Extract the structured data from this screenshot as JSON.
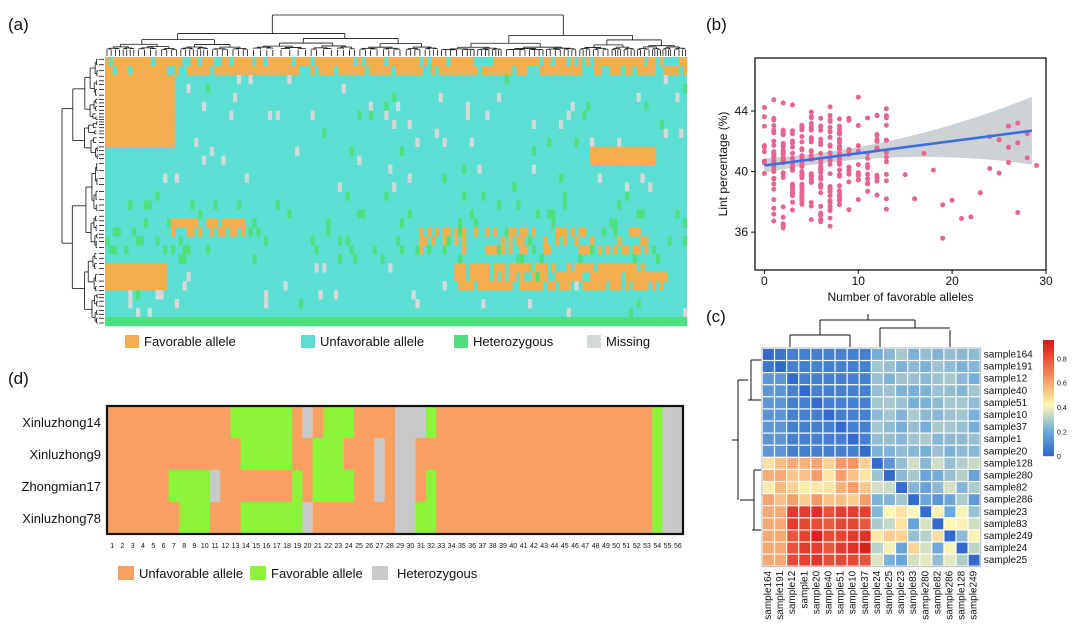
{
  "chart_data": [
    {
      "panel": "(a)",
      "type": "heatmap",
      "title": "",
      "legend": [
        {
          "label": "Favorable allele",
          "color": "#F5AE4E"
        },
        {
          "label": "Unfavorable allele",
          "color": "#5ADFD2"
        },
        {
          "label": "Heterozygous",
          "color": "#4EE07E"
        },
        {
          "label": "Missing",
          "color": "#D4D8D8"
        }
      ],
      "rows": 30,
      "columns": 56,
      "note": "Clustered genotype heatmap of favorable alleles across accessions with row and column dendrograms"
    },
    {
      "panel": "(b)",
      "type": "scatter",
      "xlabel": "Number of favorable alleles",
      "ylabel": "Lint percentage (%)",
      "xlim": [
        -1,
        30
      ],
      "ylim": [
        33.5,
        47.5
      ],
      "xticks": [
        "0",
        "10",
        "20",
        "30"
      ],
      "yticks": [
        "36",
        "40",
        "44"
      ],
      "point_color": "#E8638F",
      "regression": {
        "color": "#3B6FE0",
        "x": [
          0,
          28.5
        ],
        "y": [
          40.4,
          42.7
        ],
        "ci_color": "#C8CDD2"
      },
      "points_summary": "Dense cluster at 0–13 favorable alleles (lint 34–47%), sparse points 14–29"
    },
    {
      "panel": "(c)",
      "type": "heatmap",
      "samples": [
        "sample164",
        "sample191",
        "sample12",
        "sample40",
        "sample51",
        "sample10",
        "sample37",
        "sample1",
        "sample20",
        "sample128",
        "sample280",
        "sample82",
        "sample286",
        "sample23",
        "sample83",
        "sample249",
        "sample24",
        "sample25"
      ],
      "col_labels": [
        "sample164",
        "sample191",
        "sample12",
        "sample1",
        "sample20",
        "sample40",
        "sample51",
        "sample10",
        "sample37",
        "sample24",
        "sample25",
        "sample23",
        "sample83",
        "sample280",
        "sample82",
        "sample286",
        "sample128",
        "sample249"
      ],
      "colorbar": {
        "ticks": [
          "0",
          "0.2",
          "0.4",
          "0.6",
          "0.8"
        ],
        "min": 0,
        "max": 0.95,
        "low_color": "#2E63C9",
        "mid_color": "#FFF7B6",
        "high_color": "#D7191C"
      }
    },
    {
      "panel": "(d)",
      "type": "heatmap",
      "varieties": [
        "Xinluzhong14",
        "Xinluzhong9",
        "Zhongmian17",
        "Xinluzhong78"
      ],
      "columns": [
        "1",
        "2",
        "3",
        "4",
        "5",
        "6",
        "7",
        "8",
        "9",
        "10",
        "11",
        "12",
        "13",
        "14",
        "15",
        "16",
        "17",
        "18",
        "19",
        "20",
        "21",
        "22",
        "23",
        "24",
        "25",
        "26",
        "27",
        "28",
        "29",
        "30",
        "31",
        "32",
        "33",
        "34",
        "35",
        "36",
        "37",
        "38",
        "39",
        "40",
        "41",
        "42",
        "43",
        "44",
        "45",
        "46",
        "47",
        "48",
        "49",
        "50",
        "51",
        "52",
        "53",
        "54",
        "55",
        "56"
      ],
      "legend": [
        {
          "label": "Unfavorable allele",
          "color": "#F7A062"
        },
        {
          "label": "Favorable allele",
          "color": "#8CF23A"
        },
        {
          "label": "Heterozygous",
          "color": "#C9C9C9"
        }
      ]
    }
  ],
  "labels": {
    "a": "(a)",
    "b": "(b)",
    "c": "(c)",
    "d": "(d)"
  }
}
